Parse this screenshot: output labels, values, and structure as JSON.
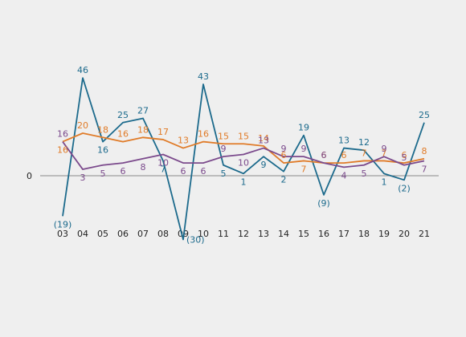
{
  "chart_data": {
    "type": "line",
    "categories": [
      "03",
      "04",
      "05",
      "06",
      "07",
      "08",
      "09",
      "10",
      "11",
      "12",
      "13",
      "14",
      "15",
      "16",
      "17",
      "18",
      "19",
      "20",
      "21"
    ],
    "zero_label": "0",
    "ylim": [
      -30,
      46
    ],
    "grid": false,
    "legend": "none",
    "series": [
      {
        "color": "#1c6a8c",
        "values": [
          -19,
          46,
          16,
          25,
          27,
          7,
          -30,
          43,
          5,
          1,
          9,
          2,
          19,
          -9,
          13,
          12,
          1,
          -2,
          25
        ],
        "labels": [
          "(19)",
          "46",
          "16",
          "25",
          "27",
          "7",
          "(30)",
          "43",
          "5",
          "1",
          "9",
          "2",
          "19",
          "(9)",
          "13",
          "12",
          "1",
          "(2)",
          "25"
        ],
        "label_pos": [
          "below",
          "above",
          "below",
          "above",
          "above",
          "below",
          "right",
          "above",
          "below",
          "below",
          "below",
          "below",
          "above",
          "below",
          "above",
          "above",
          "below",
          "below",
          "above"
        ]
      },
      {
        "color": "#e07b28",
        "values": [
          16,
          20,
          18,
          16,
          18,
          17,
          13,
          16,
          15,
          15,
          14,
          6,
          7,
          6,
          6,
          7,
          7,
          6,
          8
        ],
        "labels": [
          "16",
          "20",
          "18",
          "16",
          "18",
          "17",
          "13",
          "16",
          "15",
          "15",
          "14",
          "6",
          "7",
          "6",
          "6",
          "7",
          "7",
          "6",
          "8"
        ],
        "label_pos": [
          "below",
          "above",
          "above",
          "above",
          "above",
          "above",
          "above",
          "above",
          "above",
          "above",
          "above",
          "above",
          "below",
          "above",
          "above",
          "above",
          "above",
          "above",
          "above"
        ]
      },
      {
        "color": "#7b4a8c",
        "values": [
          16,
          3,
          5,
          6,
          8,
          10,
          6,
          6,
          9,
          10,
          13,
          9,
          9,
          6,
          4,
          5,
          9,
          5,
          7
        ],
        "labels": [
          "16",
          "3",
          "5",
          "6",
          "8",
          "10",
          "6",
          "6",
          "9",
          "10",
          "13",
          "9",
          "9",
          "6",
          "4",
          "5",
          "9",
          "5",
          "7"
        ],
        "label_pos": [
          "above",
          "below",
          "below",
          "below",
          "below",
          "below",
          "below",
          "below",
          "above",
          "below",
          "above",
          "above",
          "above",
          "above",
          "below",
          "below",
          "above",
          "above",
          "below"
        ]
      }
    ]
  }
}
